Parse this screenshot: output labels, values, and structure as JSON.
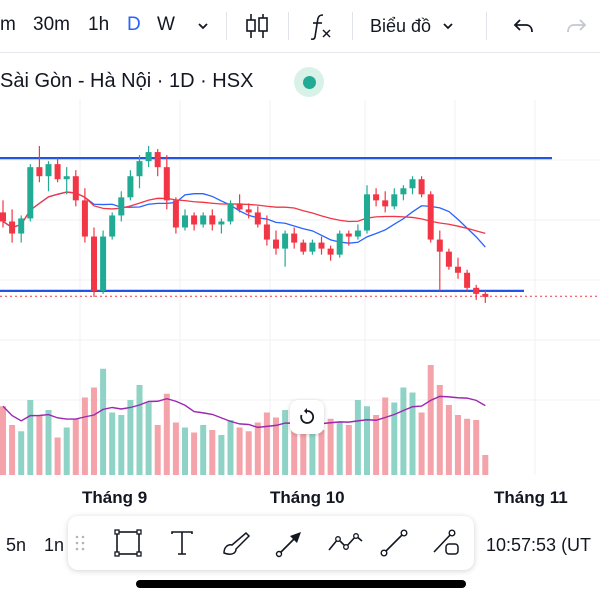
{
  "toolbar": {
    "timeframes": [
      "m",
      "30m",
      "1h",
      "D",
      "W"
    ],
    "active_timeframe": "D",
    "chart_type_label": "Biểu đồ"
  },
  "legend": {
    "title": "Sài Gòn - Hà Nội · 1D · HSX"
  },
  "time_axis": {
    "labels": [
      "Tháng 9",
      "Tháng 10",
      "Tháng 11"
    ]
  },
  "bottom": {
    "range_left": "5n",
    "range_right": "1n",
    "clock": "10:57:53 (UT"
  },
  "colors": {
    "up": "#22ab94",
    "down": "#f23645",
    "up_volume": "#8fd3c6",
    "down_volume": "#f5a3aa",
    "accent": "#2962ff",
    "ma_fast": "#2962ff",
    "ma_slow": "#f23645",
    "volume_ma": "#9c27b0",
    "trendline": "#2155e6"
  },
  "chart_data": {
    "type": "candlestick",
    "symbol_title": "Sài Gòn - Hà Nội · 1D · HSX",
    "x_labels": [
      "Tháng 9",
      "Tháng 10",
      "Tháng 11"
    ],
    "candles": [
      {
        "o": 98,
        "h": 102,
        "l": 93,
        "c": 95
      },
      {
        "o": 95,
        "h": 99,
        "l": 88,
        "c": 91
      },
      {
        "o": 91,
        "h": 97,
        "l": 88,
        "c": 96
      },
      {
        "o": 96,
        "h": 114,
        "l": 95,
        "c": 113
      },
      {
        "o": 113,
        "h": 120,
        "l": 108,
        "c": 110
      },
      {
        "o": 110,
        "h": 115,
        "l": 105,
        "c": 114
      },
      {
        "o": 114,
        "h": 116,
        "l": 108,
        "c": 109
      },
      {
        "o": 109,
        "h": 113,
        "l": 104,
        "c": 110
      },
      {
        "o": 110,
        "h": 112,
        "l": 100,
        "c": 102
      },
      {
        "o": 102,
        "h": 106,
        "l": 88,
        "c": 90
      },
      {
        "o": 90,
        "h": 93,
        "l": 70,
        "c": 72
      },
      {
        "o": 72,
        "h": 92,
        "l": 71,
        "c": 90
      },
      {
        "o": 90,
        "h": 98,
        "l": 89,
        "c": 97
      },
      {
        "o": 97,
        "h": 105,
        "l": 95,
        "c": 103
      },
      {
        "o": 103,
        "h": 112,
        "l": 102,
        "c": 110
      },
      {
        "o": 110,
        "h": 117,
        "l": 106,
        "c": 115
      },
      {
        "o": 115,
        "h": 120,
        "l": 113,
        "c": 118
      },
      {
        "o": 118,
        "h": 119,
        "l": 110,
        "c": 113
      },
      {
        "o": 113,
        "h": 117,
        "l": 99,
        "c": 102
      },
      {
        "o": 102,
        "h": 103,
        "l": 91,
        "c": 93
      },
      {
        "o": 93,
        "h": 99,
        "l": 92,
        "c": 97
      },
      {
        "o": 97,
        "h": 98,
        "l": 92,
        "c": 94
      },
      {
        "o": 94,
        "h": 98,
        "l": 93,
        "c": 97
      },
      {
        "o": 97,
        "h": 99,
        "l": 92,
        "c": 94
      },
      {
        "o": 94,
        "h": 96,
        "l": 91,
        "c": 95
      },
      {
        "o": 95,
        "h": 102,
        "l": 94,
        "c": 101
      },
      {
        "o": 101,
        "h": 104,
        "l": 98,
        "c": 99
      },
      {
        "o": 99,
        "h": 101,
        "l": 96,
        "c": 98
      },
      {
        "o": 98,
        "h": 100,
        "l": 93,
        "c": 94
      },
      {
        "o": 94,
        "h": 97,
        "l": 87,
        "c": 89
      },
      {
        "o": 89,
        "h": 92,
        "l": 84,
        "c": 86
      },
      {
        "o": 86,
        "h": 92,
        "l": 80,
        "c": 91
      },
      {
        "o": 91,
        "h": 93,
        "l": 86,
        "c": 88
      },
      {
        "o": 88,
        "h": 89,
        "l": 84,
        "c": 85
      },
      {
        "o": 85,
        "h": 89,
        "l": 84,
        "c": 88
      },
      {
        "o": 88,
        "h": 90,
        "l": 84,
        "c": 86
      },
      {
        "o": 86,
        "h": 87,
        "l": 82,
        "c": 84
      },
      {
        "o": 84,
        "h": 92,
        "l": 83,
        "c": 91
      },
      {
        "o": 91,
        "h": 92,
        "l": 87,
        "c": 90
      },
      {
        "o": 90,
        "h": 94,
        "l": 89,
        "c": 92
      },
      {
        "o": 92,
        "h": 107,
        "l": 91,
        "c": 104
      },
      {
        "o": 104,
        "h": 106,
        "l": 100,
        "c": 102
      },
      {
        "o": 102,
        "h": 105,
        "l": 98,
        "c": 100
      },
      {
        "o": 100,
        "h": 106,
        "l": 99,
        "c": 104
      },
      {
        "o": 104,
        "h": 107,
        "l": 102,
        "c": 106
      },
      {
        "o": 106,
        "h": 110,
        "l": 104,
        "c": 109
      },
      {
        "o": 109,
        "h": 110,
        "l": 103,
        "c": 104
      },
      {
        "o": 104,
        "h": 105,
        "l": 88,
        "c": 89
      },
      {
        "o": 89,
        "h": 92,
        "l": 72,
        "c": 85
      },
      {
        "o": 85,
        "h": 86,
        "l": 79,
        "c": 80
      },
      {
        "o": 80,
        "h": 83,
        "l": 76,
        "c": 78
      },
      {
        "o": 78,
        "h": 79,
        "l": 72,
        "c": 73
      },
      {
        "o": 73,
        "h": 74,
        "l": 69,
        "c": 71
      },
      {
        "o": 71,
        "h": 72,
        "l": 68,
        "c": 70
      }
    ],
    "volume": [
      55,
      40,
      35,
      60,
      48,
      52,
      30,
      38,
      45,
      62,
      70,
      85,
      50,
      48,
      60,
      72,
      58,
      40,
      65,
      42,
      38,
      34,
      40,
      36,
      32,
      44,
      38,
      35,
      42,
      50,
      46,
      52,
      40,
      34,
      38,
      36,
      45,
      42,
      40,
      60,
      55,
      48,
      62,
      58,
      70,
      66,
      50,
      88,
      72,
      56,
      48,
      45,
      44,
      16
    ],
    "resistance_level": 116,
    "support_level": 72,
    "last_price_level": 70.2
  }
}
